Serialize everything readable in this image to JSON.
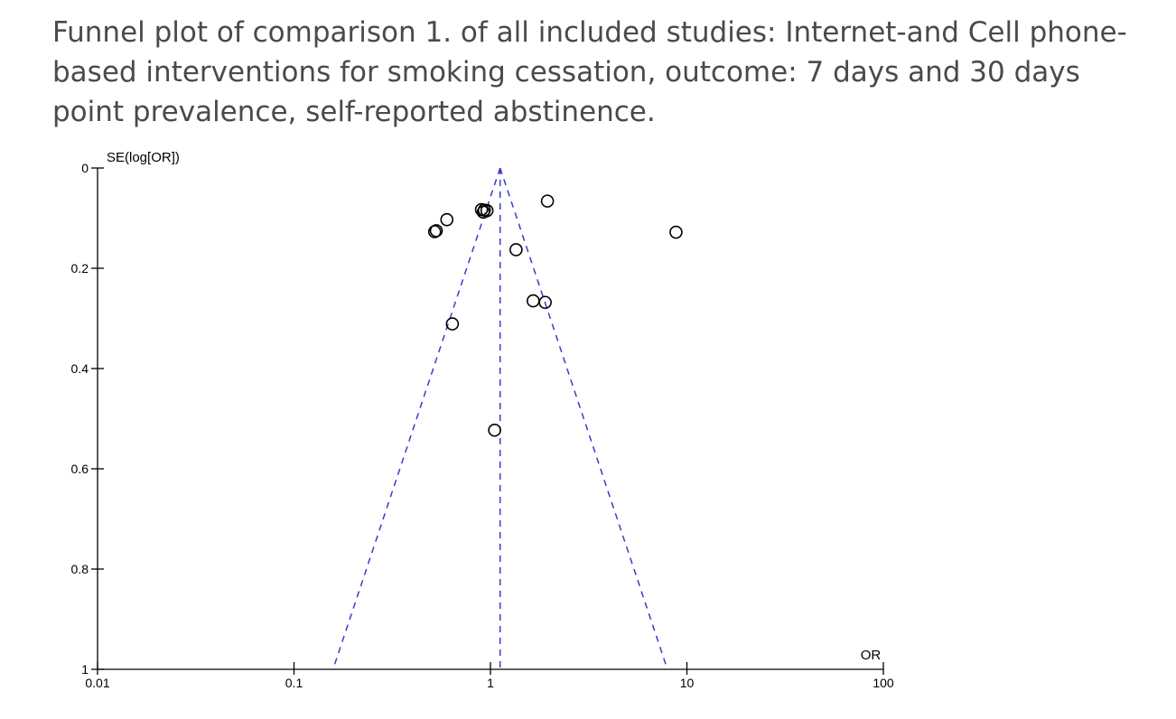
{
  "title": "Funnel plot of comparison 1. of all included studies: Internet-and Cell phone-based interventions for smoking cessation, outcome: 7 days and 30 days point prevalence, self-reported abstinence.",
  "chart_data": {
    "type": "scatter",
    "subtype": "funnel",
    "ylabel": "SE(log[OR])",
    "xlabel": "OR",
    "x_scale": "log",
    "y_reversed": true,
    "xlim": [
      0.01,
      100
    ],
    "ylim": [
      0,
      1
    ],
    "x_ticks": [
      0.01,
      0.1,
      1,
      10,
      100
    ],
    "x_tick_labels": [
      "0.01",
      "0.1",
      "1",
      "10",
      "100"
    ],
    "y_ticks": [
      0,
      0.2,
      0.4,
      0.6,
      0.8,
      1
    ],
    "y_tick_labels": [
      "0",
      "0.2",
      "0.4",
      "0.6",
      "0.8",
      "1"
    ],
    "pooled_or": 1.12,
    "funnel_limits_at_se_1": [
      0.158,
      7.96
    ],
    "points": [
      {
        "or": 1.95,
        "se": 0.066
      },
      {
        "or": 8.8,
        "se": 0.128
      },
      {
        "or": 0.6,
        "se": 0.103
      },
      {
        "or": 0.53,
        "se": 0.125
      },
      {
        "or": 0.52,
        "se": 0.127
      },
      {
        "or": 0.9,
        "se": 0.083
      },
      {
        "or": 0.93,
        "se": 0.084
      },
      {
        "or": 0.96,
        "se": 0.085
      },
      {
        "or": 0.92,
        "se": 0.088
      },
      {
        "or": 1.35,
        "se": 0.163
      },
      {
        "or": 1.65,
        "se": 0.265
      },
      {
        "or": 1.9,
        "se": 0.268
      },
      {
        "or": 0.64,
        "se": 0.311
      },
      {
        "or": 1.05,
        "se": 0.523
      }
    ],
    "colors": {
      "points": "#000000",
      "funnel_lines": "#3a3ad0",
      "axes": "#000000"
    }
  }
}
